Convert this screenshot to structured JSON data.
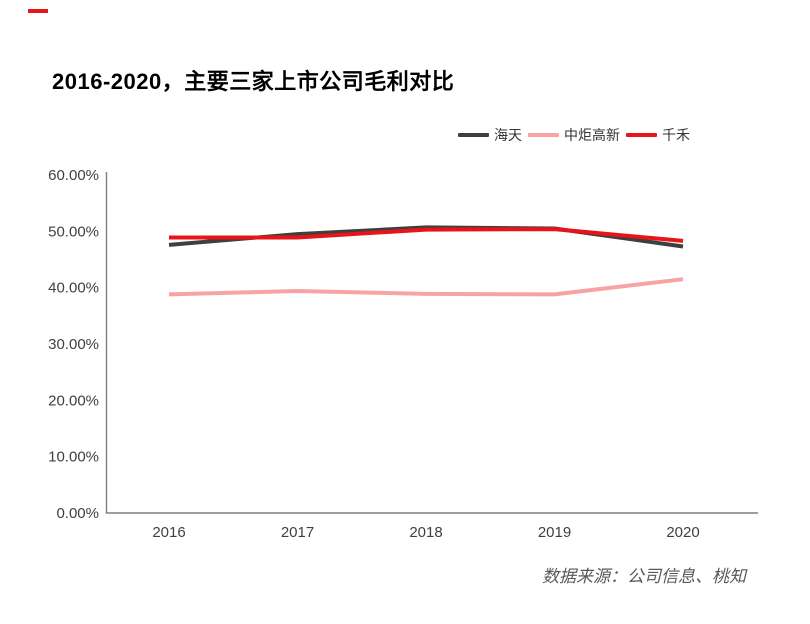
{
  "page": {
    "title": "2016-2020，主要三家上市公司毛利对比",
    "source_note": "数据来源：公司信息、桃知",
    "accent_color": "#e8141c",
    "background_color": "#ffffff",
    "axis_color": "#7f7f7f",
    "tick_label_color": "#404040"
  },
  "legend": {
    "items": [
      {
        "label": "海天",
        "color": "#3f3f3f"
      },
      {
        "label": "中炬高新",
        "color": "#f8a3a3"
      },
      {
        "label": "千禾",
        "color": "#e8141c"
      }
    ]
  },
  "chart_data": {
    "type": "line",
    "title": "2016-2020，主要三家上市公司毛利对比",
    "x": [
      "2016",
      "2017",
      "2018",
      "2019",
      "2020"
    ],
    "series": [
      {
        "name": "海天",
        "color": "#3f3f3f",
        "values": [
          47.6,
          49.5,
          50.7,
          50.5,
          47.3
        ]
      },
      {
        "name": "中炬高新",
        "color": "#f8a3a3",
        "values": [
          38.8,
          39.4,
          38.9,
          38.8,
          41.5
        ]
      },
      {
        "name": "千禾",
        "color": "#e8141c",
        "values": [
          48.9,
          48.9,
          50.3,
          50.4,
          48.3
        ]
      }
    ],
    "ylim": [
      0,
      60
    ],
    "ytick_labels": [
      "0.00%",
      "10.00%",
      "20.00%",
      "30.00%",
      "40.00%",
      "50.00%",
      "60.00%"
    ],
    "xlabel": "",
    "ylabel": "",
    "grid": false,
    "legend_position": "top-right"
  }
}
